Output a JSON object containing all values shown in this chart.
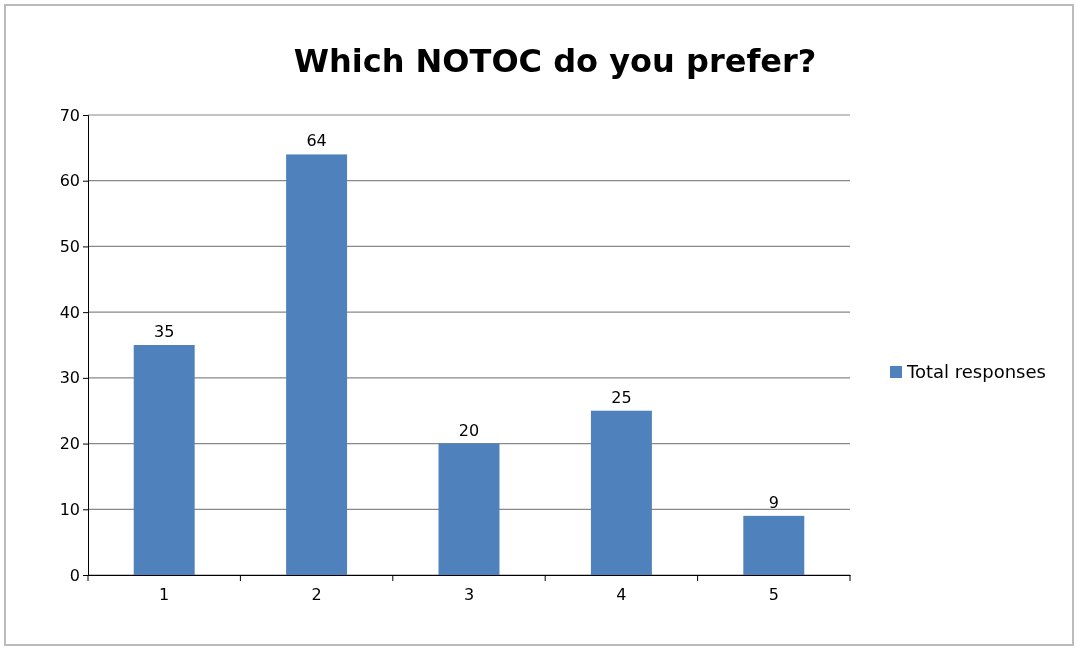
{
  "chart_data": {
    "type": "bar",
    "title": "Which NOTOC do you prefer?",
    "categories": [
      "1",
      "2",
      "3",
      "4",
      "5"
    ],
    "series": [
      {
        "name": "Total responses",
        "color": "#4f81bd",
        "values": [
          35,
          64,
          20,
          25,
          9
        ]
      }
    ],
    "ylim": [
      0,
      70
    ],
    "yticks": [
      0,
      10,
      20,
      30,
      40,
      50,
      60,
      70
    ],
    "grid": "y",
    "legend": "right",
    "data_labels": true
  }
}
